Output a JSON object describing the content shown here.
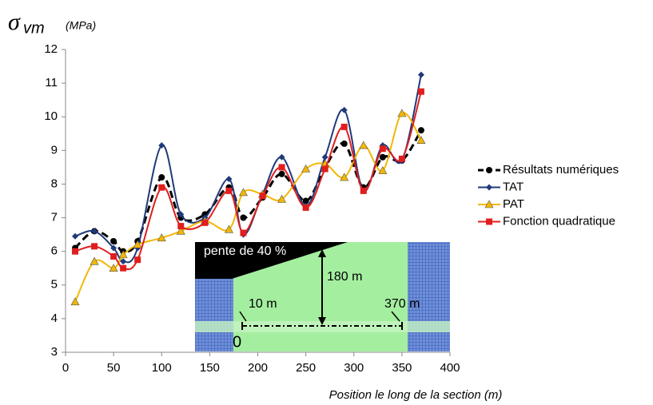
{
  "chart_data": {
    "type": "line",
    "y_label_symbol": "σ",
    "y_label_subscript": "vm",
    "y_label_unit": "(MPa)",
    "x_label": "Position le long de la section (m)",
    "x": [
      10,
      30,
      50,
      60,
      75,
      100,
      120,
      145,
      170,
      185,
      205,
      225,
      250,
      270,
      290,
      310,
      330,
      350,
      370
    ],
    "series": [
      {
        "name": "Résultats numériques",
        "color": "#000000",
        "marker": "circle",
        "dashed": true,
        "values": [
          6.1,
          6.6,
          6.3,
          6.0,
          6.3,
          8.2,
          7.0,
          7.1,
          7.9,
          7.0,
          7.6,
          8.3,
          7.5,
          8.5,
          9.2,
          7.9,
          8.8,
          8.7,
          9.6
        ]
      },
      {
        "name": "TAT",
        "color": "#1f3a7a",
        "marker": "diamond",
        "dashed": false,
        "values": [
          6.45,
          6.6,
          6.1,
          5.7,
          6.1,
          9.15,
          7.1,
          7.0,
          8.15,
          6.5,
          7.7,
          8.8,
          7.35,
          8.8,
          10.2,
          7.8,
          9.15,
          8.7,
          11.25
        ]
      },
      {
        "name": "PAT",
        "color": "#f2b705",
        "marker": "triangle",
        "dashed": false,
        "values": [
          4.5,
          5.7,
          5.5,
          5.9,
          6.2,
          6.4,
          6.6,
          6.9,
          6.65,
          7.75,
          7.7,
          7.55,
          8.45,
          8.6,
          8.2,
          9.15,
          8.4,
          10.1,
          9.3
        ]
      },
      {
        "name": "Fonction quadratique",
        "color": "#e01e1e",
        "marker": "square",
        "dashed": false,
        "values": [
          6.0,
          6.15,
          5.85,
          5.5,
          5.75,
          7.9,
          6.75,
          6.85,
          7.8,
          6.55,
          7.65,
          8.5,
          7.3,
          8.45,
          9.7,
          7.8,
          9.05,
          8.75,
          10.75
        ]
      }
    ],
    "xlim": [
      0,
      400
    ],
    "xticks": [
      0,
      50,
      100,
      150,
      200,
      250,
      300,
      350,
      400
    ],
    "ylim": [
      3,
      12
    ],
    "yticks": [
      3,
      4,
      5,
      6,
      7,
      8,
      9,
      10,
      11,
      12
    ],
    "grid": false,
    "legend": "right",
    "inset": {
      "slope": "pente de 40 %",
      "height": "180 m",
      "start": "10 m",
      "end": "370 m",
      "origin": "0"
    }
  }
}
